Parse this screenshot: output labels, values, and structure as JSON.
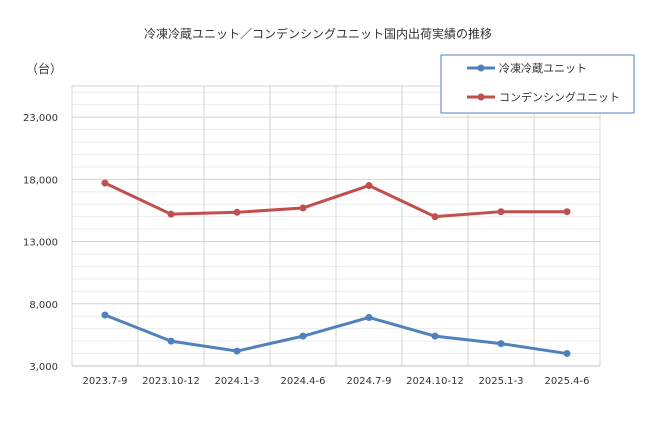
{
  "chart_data": {
    "type": "line",
    "title": "冷凍冷蔵ユニット／コンデンシングユニット国内出荷実績の推移",
    "y_unit_label": "（台）",
    "xlabel": "",
    "ylabel": "",
    "categories": [
      "2023.7-9",
      "2023.10-12",
      "2024.1-3",
      "2024.4-6",
      "2024.7-9",
      "2024.10-12",
      "2025.1-3",
      "2025.4-6"
    ],
    "ylim": [
      3000,
      25500
    ],
    "yticks": [
      3000,
      8000,
      13000,
      18000,
      23000
    ],
    "ytick_labels": [
      "3,000",
      "8,000",
      "13,000",
      "18,000",
      "23,000"
    ],
    "grid": true,
    "legend_position": "top-right",
    "series": [
      {
        "name": "冷凍冷蔵ユニット",
        "color": "#4f81bd",
        "values": [
          7100,
          5000,
          4200,
          5400,
          6900,
          5400,
          4800,
          4000
        ]
      },
      {
        "name": "コンデンシングユニット",
        "color": "#c0504d",
        "values": [
          17700,
          15200,
          15350,
          15700,
          17500,
          15000,
          15400,
          15400
        ]
      }
    ]
  }
}
